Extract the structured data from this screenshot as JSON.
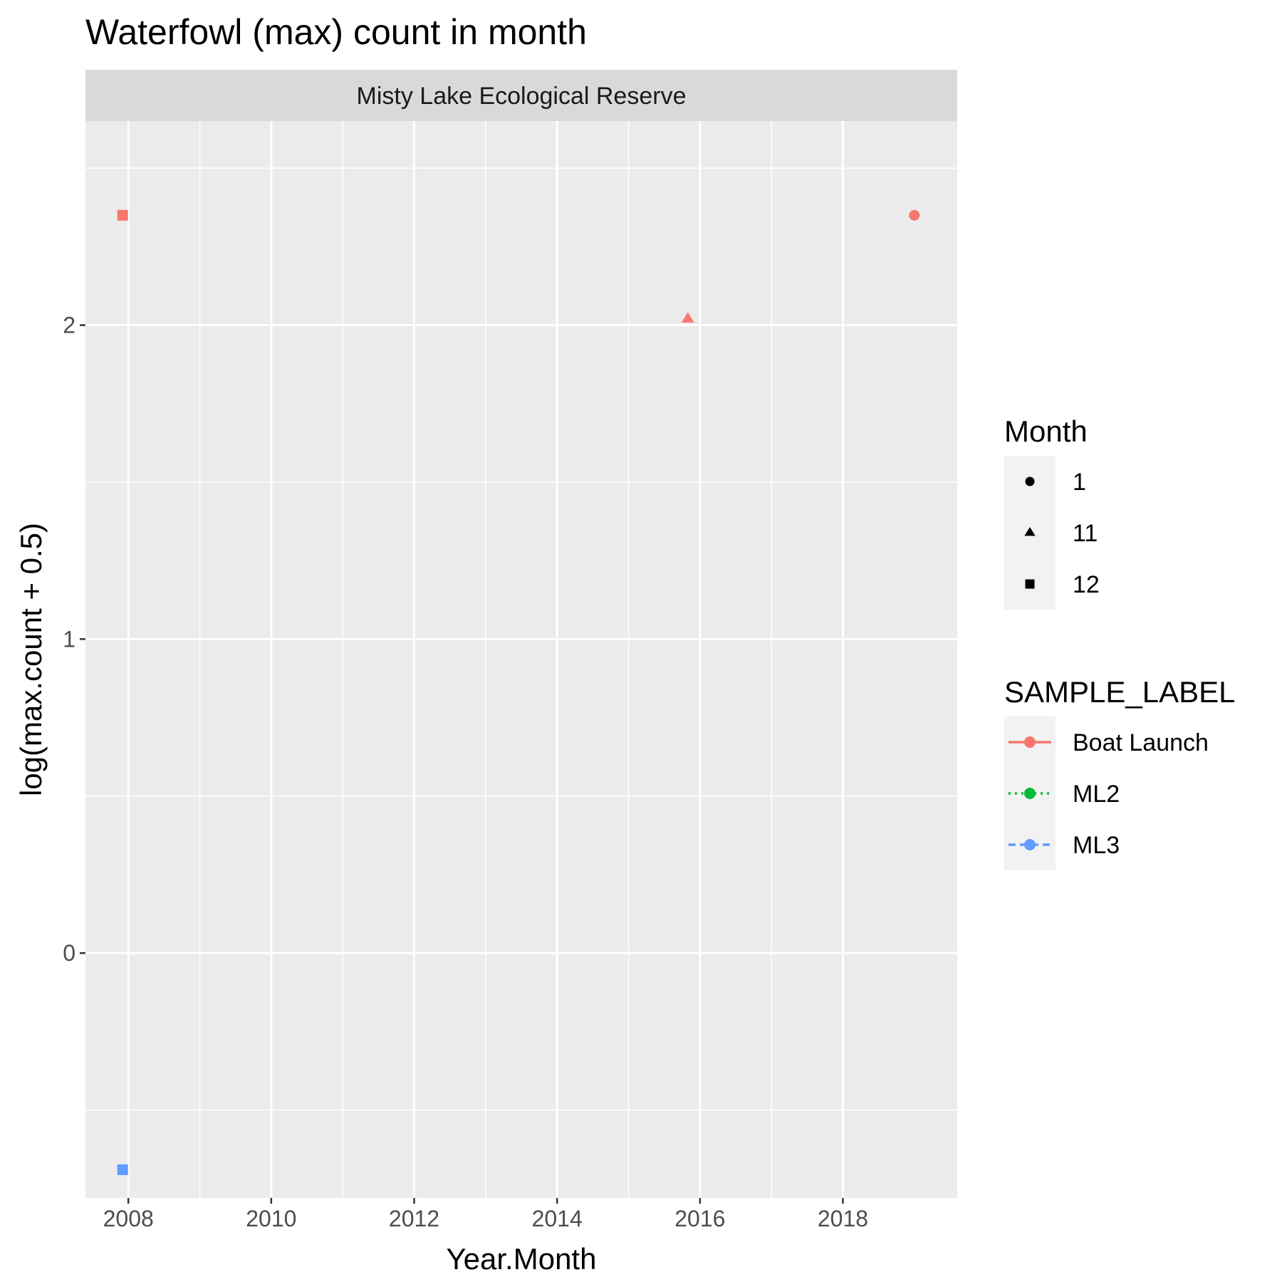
{
  "chart_data": {
    "type": "scatter",
    "title": "Waterfowl (max) count in month",
    "facet_label": "Misty Lake Ecological Reserve",
    "xlabel": "Year.Month",
    "ylabel": "log(max.count + 0.5)",
    "xlim": [
      2007.4,
      2019.6
    ],
    "ylim": [
      -0.78,
      2.65
    ],
    "x_ticks": [
      2008,
      2010,
      2012,
      2014,
      2016,
      2018
    ],
    "x_tick_labels": [
      "2008",
      "2010",
      "2012",
      "2014",
      "2016",
      "2018"
    ],
    "y_ticks": [
      0,
      1,
      2
    ],
    "y_tick_labels": [
      "0",
      "1",
      "2"
    ],
    "grid": true,
    "legend_position": "right",
    "colors": {
      "Boat Launch": "#F8766D",
      "ML2": "#00BA38",
      "ML3": "#619CFF"
    },
    "legends": [
      {
        "title": "Month",
        "kind": "shape",
        "entries": [
          {
            "label": "1",
            "shape": "circle"
          },
          {
            "label": "11",
            "shape": "triangle"
          },
          {
            "label": "12",
            "shape": "square"
          }
        ]
      },
      {
        "title": "SAMPLE_LABEL",
        "kind": "color",
        "entries": [
          {
            "label": "Boat Launch",
            "color": "#F8766D",
            "linetype": "solid"
          },
          {
            "label": "ML2",
            "color": "#00BA38",
            "linetype": "dotted"
          },
          {
            "label": "ML3",
            "color": "#619CFF",
            "linetype": "dashed"
          }
        ]
      }
    ],
    "points": [
      {
        "x": 2007.92,
        "y": 2.35,
        "series": "Boat Launch",
        "month": "12",
        "shape": "square"
      },
      {
        "x": 2015.83,
        "y": 2.02,
        "series": "Boat Launch",
        "month": "11",
        "shape": "triangle"
      },
      {
        "x": 2019.0,
        "y": 2.35,
        "series": "Boat Launch",
        "month": "1",
        "shape": "circle"
      },
      {
        "x": 2007.92,
        "y": -0.69,
        "series": "ML3",
        "month": "12",
        "shape": "square"
      }
    ]
  }
}
